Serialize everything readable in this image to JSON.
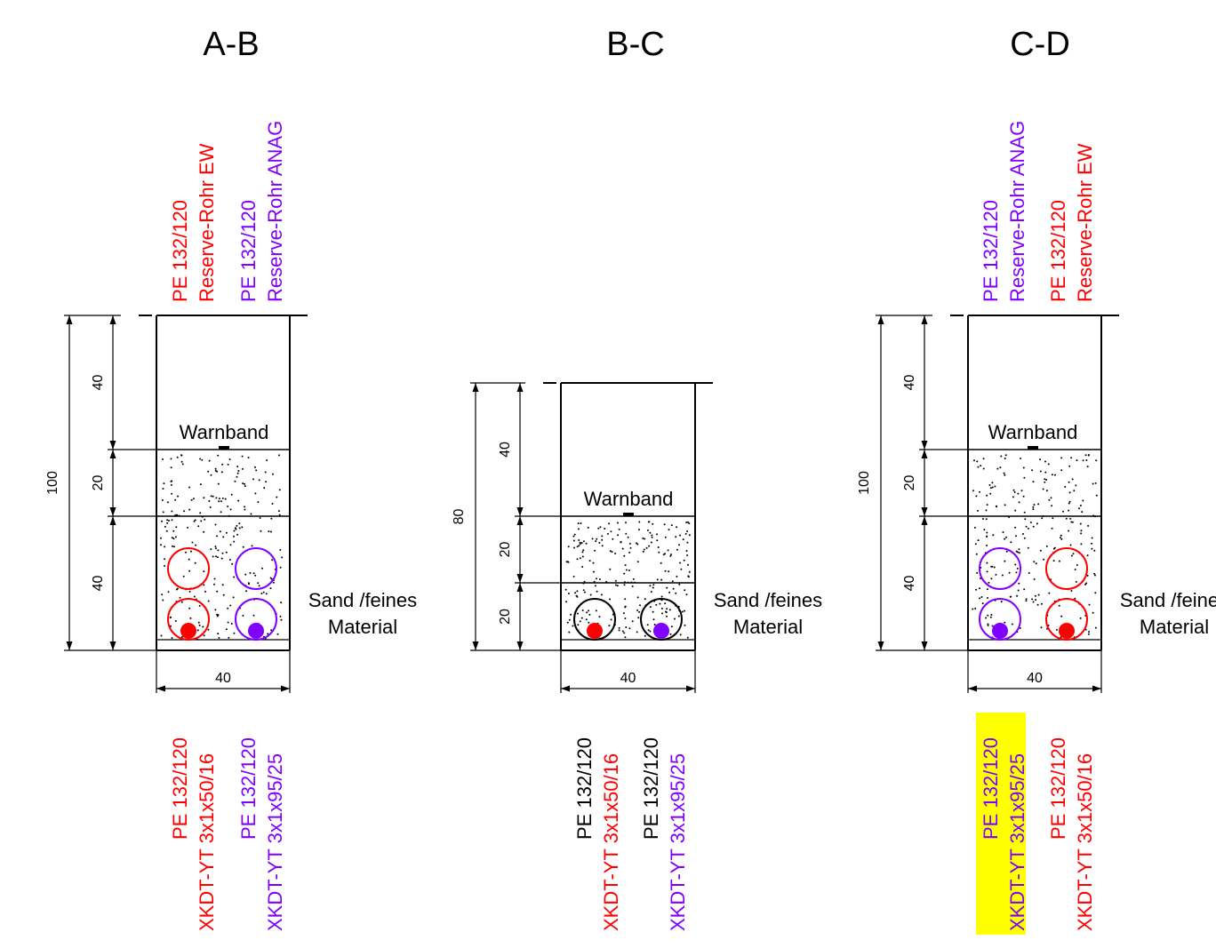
{
  "colors": {
    "red": "#ff0000",
    "purple": "#8000ff",
    "black": "#000000",
    "highlight": "#ffff00"
  },
  "sections": [
    {
      "title": "A-B",
      "top_labels": [
        {
          "line1": "PE 132/120",
          "line2": "Reserve-Rohr EW",
          "color": "red",
          "color2": "red"
        },
        {
          "line1": "PE 132/120",
          "line2": "Reserve-Rohr ANAG",
          "color": "purple",
          "color2": "purple"
        }
      ],
      "bottom_labels": [
        {
          "line1": "PE 132/120",
          "line2": "XKDT-YT 3x1x50/16",
          "color": "red",
          "color2": "red",
          "highlight": false
        },
        {
          "line1": "PE 132/120",
          "line2": "XKDT-YT 3x1x95/25",
          "color": "purple",
          "color2": "purple",
          "highlight": false
        }
      ],
      "total_depth": "100",
      "layers": [
        "40",
        "20",
        "40"
      ],
      "width": "40",
      "warnband": "Warnband",
      "material_line1": "Sand /feines",
      "material_line2": "Material"
    },
    {
      "title": "B-C",
      "top_labels": [],
      "bottom_labels": [
        {
          "line1": "PE 132/120",
          "line2": "XKDT-YT 3x1x50/16",
          "color": "black",
          "color2": "red",
          "highlight": false
        },
        {
          "line1": "PE 132/120",
          "line2": "XKDT-YT 3x1x95/25",
          "color": "black",
          "color2": "purple",
          "highlight": false
        }
      ],
      "total_depth": "80",
      "layers": [
        "40",
        "20",
        "20"
      ],
      "width": "40",
      "warnband": "Warnband",
      "material_line1": "Sand /feines",
      "material_line2": "Material"
    },
    {
      "title": "C-D",
      "top_labels": [
        {
          "line1": "PE 132/120",
          "line2": "Reserve-Rohr ANAG",
          "color": "purple",
          "color2": "purple"
        },
        {
          "line1": "PE 132/120",
          "line2": "Reserve-Rohr EW",
          "color": "red",
          "color2": "red"
        }
      ],
      "bottom_labels": [
        {
          "line1": "PE 132/120",
          "line2": "XKDT-YT 3x1x95/25",
          "color": "purple",
          "color2": "purple",
          "highlight": true
        },
        {
          "line1": "PE 132/120",
          "line2": "XKDT-YT 3x1x50/16",
          "color": "red",
          "color2": "red",
          "highlight": false
        }
      ],
      "total_depth": "100",
      "layers": [
        "40",
        "20",
        "40"
      ],
      "width": "40",
      "warnband": "Warnband",
      "material_line1": "Sand /feines",
      "material_line2": "Material"
    }
  ]
}
